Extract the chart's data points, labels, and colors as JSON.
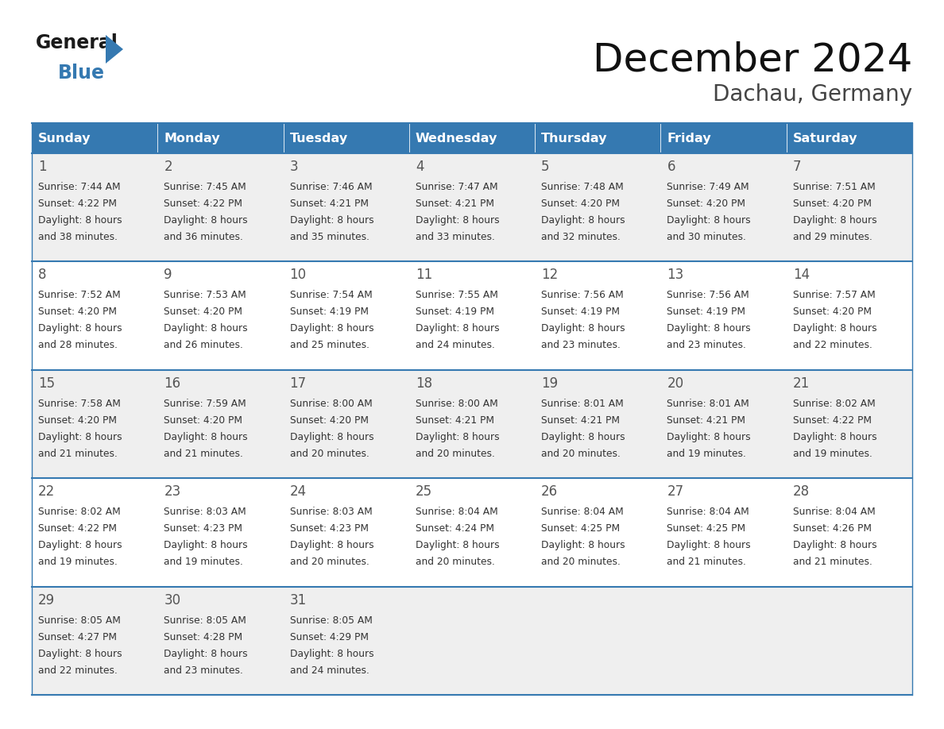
{
  "title": "December 2024",
  "subtitle": "Dachau, Germany",
  "header_bg": "#3579B1",
  "header_text_color": "#FFFFFF",
  "cell_bg_odd": "#EFEFEF",
  "cell_bg_even": "#FFFFFF",
  "day_names": [
    "Sunday",
    "Monday",
    "Tuesday",
    "Wednesday",
    "Thursday",
    "Friday",
    "Saturday"
  ],
  "grid_line_color": "#3579B1",
  "day_number_color": "#555555",
  "cell_text_color": "#333333",
  "title_color": "#111111",
  "subtitle_color": "#444444",
  "logo_general_color": "#1a1a1a",
  "logo_blue_color": "#3579B1",
  "days": [
    {
      "day": 1,
      "col": 0,
      "row": 0,
      "sunrise": "7:44 AM",
      "sunset": "4:22 PM",
      "daylight_hours": 8,
      "daylight_minutes": 38
    },
    {
      "day": 2,
      "col": 1,
      "row": 0,
      "sunrise": "7:45 AM",
      "sunset": "4:22 PM",
      "daylight_hours": 8,
      "daylight_minutes": 36
    },
    {
      "day": 3,
      "col": 2,
      "row": 0,
      "sunrise": "7:46 AM",
      "sunset": "4:21 PM",
      "daylight_hours": 8,
      "daylight_minutes": 35
    },
    {
      "day": 4,
      "col": 3,
      "row": 0,
      "sunrise": "7:47 AM",
      "sunset": "4:21 PM",
      "daylight_hours": 8,
      "daylight_minutes": 33
    },
    {
      "day": 5,
      "col": 4,
      "row": 0,
      "sunrise": "7:48 AM",
      "sunset": "4:20 PM",
      "daylight_hours": 8,
      "daylight_minutes": 32
    },
    {
      "day": 6,
      "col": 5,
      "row": 0,
      "sunrise": "7:49 AM",
      "sunset": "4:20 PM",
      "daylight_hours": 8,
      "daylight_minutes": 30
    },
    {
      "day": 7,
      "col": 6,
      "row": 0,
      "sunrise": "7:51 AM",
      "sunset": "4:20 PM",
      "daylight_hours": 8,
      "daylight_minutes": 29
    },
    {
      "day": 8,
      "col": 0,
      "row": 1,
      "sunrise": "7:52 AM",
      "sunset": "4:20 PM",
      "daylight_hours": 8,
      "daylight_minutes": 28
    },
    {
      "day": 9,
      "col": 1,
      "row": 1,
      "sunrise": "7:53 AM",
      "sunset": "4:20 PM",
      "daylight_hours": 8,
      "daylight_minutes": 26
    },
    {
      "day": 10,
      "col": 2,
      "row": 1,
      "sunrise": "7:54 AM",
      "sunset": "4:19 PM",
      "daylight_hours": 8,
      "daylight_minutes": 25
    },
    {
      "day": 11,
      "col": 3,
      "row": 1,
      "sunrise": "7:55 AM",
      "sunset": "4:19 PM",
      "daylight_hours": 8,
      "daylight_minutes": 24
    },
    {
      "day": 12,
      "col": 4,
      "row": 1,
      "sunrise": "7:56 AM",
      "sunset": "4:19 PM",
      "daylight_hours": 8,
      "daylight_minutes": 23
    },
    {
      "day": 13,
      "col": 5,
      "row": 1,
      "sunrise": "7:56 AM",
      "sunset": "4:19 PM",
      "daylight_hours": 8,
      "daylight_minutes": 23
    },
    {
      "day": 14,
      "col": 6,
      "row": 1,
      "sunrise": "7:57 AM",
      "sunset": "4:20 PM",
      "daylight_hours": 8,
      "daylight_minutes": 22
    },
    {
      "day": 15,
      "col": 0,
      "row": 2,
      "sunrise": "7:58 AM",
      "sunset": "4:20 PM",
      "daylight_hours": 8,
      "daylight_minutes": 21
    },
    {
      "day": 16,
      "col": 1,
      "row": 2,
      "sunrise": "7:59 AM",
      "sunset": "4:20 PM",
      "daylight_hours": 8,
      "daylight_minutes": 21
    },
    {
      "day": 17,
      "col": 2,
      "row": 2,
      "sunrise": "8:00 AM",
      "sunset": "4:20 PM",
      "daylight_hours": 8,
      "daylight_minutes": 20
    },
    {
      "day": 18,
      "col": 3,
      "row": 2,
      "sunrise": "8:00 AM",
      "sunset": "4:21 PM",
      "daylight_hours": 8,
      "daylight_minutes": 20
    },
    {
      "day": 19,
      "col": 4,
      "row": 2,
      "sunrise": "8:01 AM",
      "sunset": "4:21 PM",
      "daylight_hours": 8,
      "daylight_minutes": 20
    },
    {
      "day": 20,
      "col": 5,
      "row": 2,
      "sunrise": "8:01 AM",
      "sunset": "4:21 PM",
      "daylight_hours": 8,
      "daylight_minutes": 19
    },
    {
      "day": 21,
      "col": 6,
      "row": 2,
      "sunrise": "8:02 AM",
      "sunset": "4:22 PM",
      "daylight_hours": 8,
      "daylight_minutes": 19
    },
    {
      "day": 22,
      "col": 0,
      "row": 3,
      "sunrise": "8:02 AM",
      "sunset": "4:22 PM",
      "daylight_hours": 8,
      "daylight_minutes": 19
    },
    {
      "day": 23,
      "col": 1,
      "row": 3,
      "sunrise": "8:03 AM",
      "sunset": "4:23 PM",
      "daylight_hours": 8,
      "daylight_minutes": 19
    },
    {
      "day": 24,
      "col": 2,
      "row": 3,
      "sunrise": "8:03 AM",
      "sunset": "4:23 PM",
      "daylight_hours": 8,
      "daylight_minutes": 20
    },
    {
      "day": 25,
      "col": 3,
      "row": 3,
      "sunrise": "8:04 AM",
      "sunset": "4:24 PM",
      "daylight_hours": 8,
      "daylight_minutes": 20
    },
    {
      "day": 26,
      "col": 4,
      "row": 3,
      "sunrise": "8:04 AM",
      "sunset": "4:25 PM",
      "daylight_hours": 8,
      "daylight_minutes": 20
    },
    {
      "day": 27,
      "col": 5,
      "row": 3,
      "sunrise": "8:04 AM",
      "sunset": "4:25 PM",
      "daylight_hours": 8,
      "daylight_minutes": 21
    },
    {
      "day": 28,
      "col": 6,
      "row": 3,
      "sunrise": "8:04 AM",
      "sunset": "4:26 PM",
      "daylight_hours": 8,
      "daylight_minutes": 21
    },
    {
      "day": 29,
      "col": 0,
      "row": 4,
      "sunrise": "8:05 AM",
      "sunset": "4:27 PM",
      "daylight_hours": 8,
      "daylight_minutes": 22
    },
    {
      "day": 30,
      "col": 1,
      "row": 4,
      "sunrise": "8:05 AM",
      "sunset": "4:28 PM",
      "daylight_hours": 8,
      "daylight_minutes": 23
    },
    {
      "day": 31,
      "col": 2,
      "row": 4,
      "sunrise": "8:05 AM",
      "sunset": "4:29 PM",
      "daylight_hours": 8,
      "daylight_minutes": 24
    }
  ],
  "fig_width": 11.88,
  "fig_height": 9.18,
  "dpi": 100
}
